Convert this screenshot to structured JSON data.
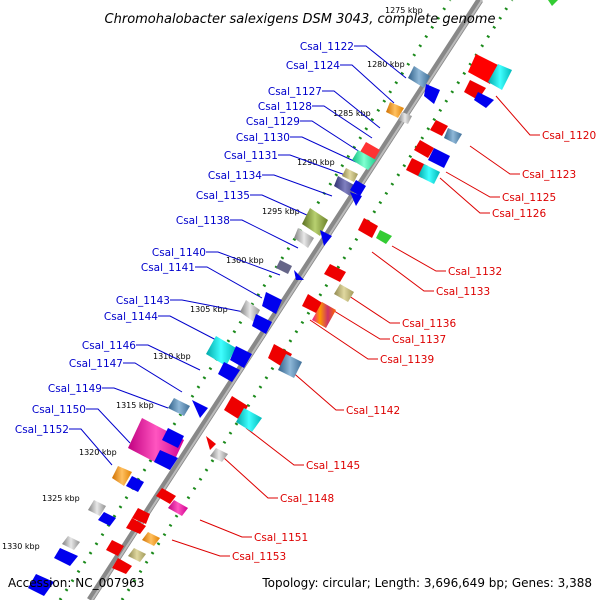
{
  "title": "Chromohalobacter salexigens DSM 3043, complete genome",
  "accession": "Accession: NC_007963",
  "summary": "Topology: circular; Length: 3,696,649 bp; Genes: 3,388",
  "colors": {
    "backbone": "#808080",
    "dots": "#1b8a1b",
    "left_label": "#0000cc",
    "right_label": "#dd0000",
    "forward_arrow": "#0000ee",
    "reverse_arrow": "#ee0000",
    "cyan": "#00cccc",
    "magenta": "#ee1199",
    "steel": "#4f7fa8",
    "grey": "#b0b0b0",
    "olive": "#8aa040",
    "orange": "#ff9900",
    "green": "#33cc33"
  },
  "ticks": [
    "1275 kbp",
    "1280 kbp",
    "1285 kbp",
    "1290 kbp",
    "1295 kbp",
    "1300 kbp",
    "1305 kbp",
    "1310 kbp",
    "1315 kbp",
    "1320 kbp",
    "1325 kbp",
    "1330 kbp"
  ],
  "left_genes": [
    "Csal_1122",
    "Csal_1124",
    "Csal_1127",
    "Csal_1128",
    "Csal_1129",
    "Csal_1130",
    "Csal_1131",
    "Csal_1134",
    "Csal_1135",
    "Csal_1138",
    "Csal_1140",
    "Csal_1141",
    "Csal_1143",
    "Csal_1144",
    "Csal_1146",
    "Csal_1147",
    "Csal_1149",
    "Csal_1150",
    "Csal_1152"
  ],
  "right_genes": [
    "Csal_1120",
    "Csal_1123",
    "Csal_1125",
    "Csal_1126",
    "Csal_1132",
    "Csal_1133",
    "Csal_1136",
    "Csal_1137",
    "Csal_1139",
    "Csal_1142",
    "Csal_1145",
    "Csal_1148",
    "Csal_1151",
    "Csal_1153"
  ]
}
